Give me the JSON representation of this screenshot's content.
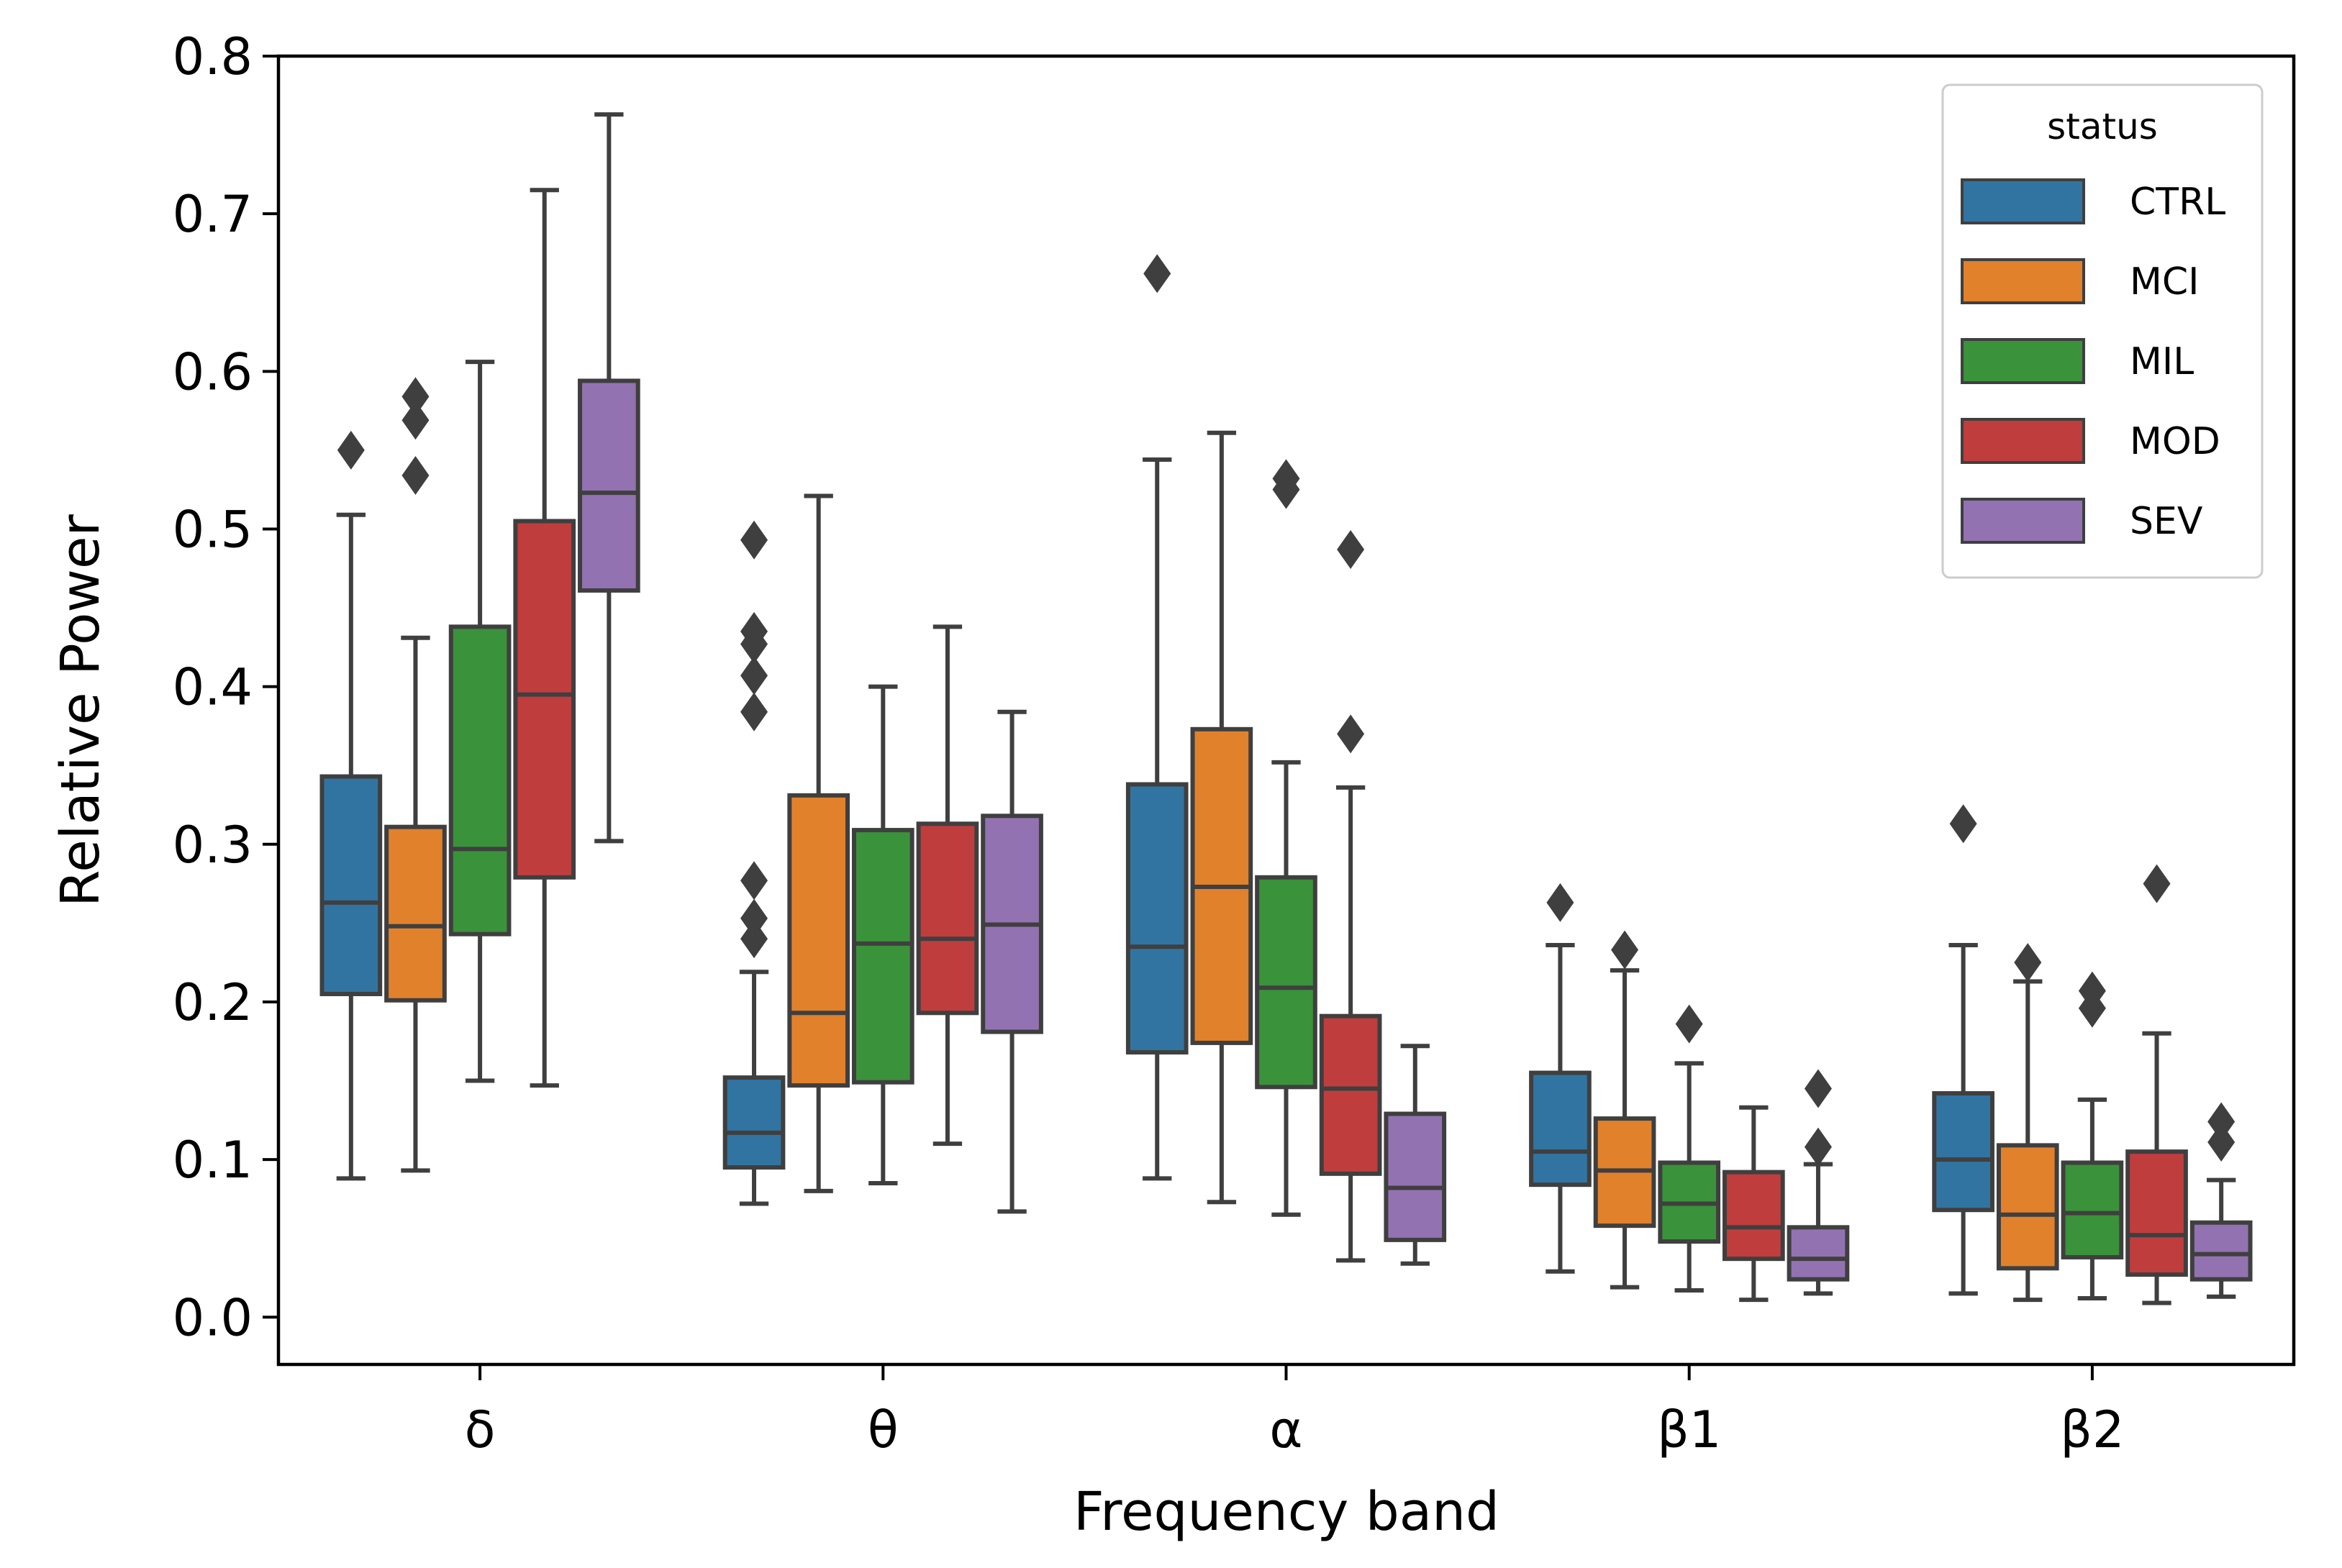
{
  "chart_data": {
    "type": "boxplot",
    "title": "",
    "xlabel": "Frequency band",
    "ylabel": "Relative Power",
    "ylim": [
      -0.03,
      0.8
    ],
    "yticks": [
      "0.0",
      "0.1",
      "0.2",
      "0.3",
      "0.4",
      "0.5",
      "0.6",
      "0.7",
      "0.8"
    ],
    "categories": [
      "δ",
      "θ",
      "α",
      "β1",
      "β2"
    ],
    "legend": {
      "title": "status",
      "position": "top-right"
    },
    "series": [
      {
        "name": "CTRL",
        "color": "#3274a1",
        "boxes": [
          {
            "whisker_low": 0.088,
            "q1": 0.205,
            "median": 0.263,
            "q3": 0.343,
            "whisker_high": 0.509,
            "outliers": [
              0.55
            ]
          },
          {
            "whisker_low": 0.072,
            "q1": 0.095,
            "median": 0.117,
            "q3": 0.152,
            "whisker_high": 0.219,
            "outliers": [
              0.24,
              0.253,
              0.277,
              0.384,
              0.407,
              0.427,
              0.435,
              0.493
            ]
          },
          {
            "whisker_low": 0.088,
            "q1": 0.168,
            "median": 0.235,
            "q3": 0.338,
            "whisker_high": 0.544,
            "outliers": [
              0.662
            ]
          },
          {
            "whisker_low": 0.029,
            "q1": 0.084,
            "median": 0.105,
            "q3": 0.155,
            "whisker_high": 0.236,
            "outliers": [
              0.263
            ]
          },
          {
            "whisker_low": 0.015,
            "q1": 0.068,
            "median": 0.1,
            "q3": 0.142,
            "whisker_high": 0.236,
            "outliers": [
              0.313
            ]
          }
        ]
      },
      {
        "name": "MCI",
        "color": "#e1812c",
        "boxes": [
          {
            "whisker_low": 0.093,
            "q1": 0.201,
            "median": 0.248,
            "q3": 0.311,
            "whisker_high": 0.431,
            "outliers": [
              0.534,
              0.569,
              0.584
            ]
          },
          {
            "whisker_low": 0.08,
            "q1": 0.147,
            "median": 0.193,
            "q3": 0.331,
            "whisker_high": 0.521,
            "outliers": []
          },
          {
            "whisker_low": 0.073,
            "q1": 0.174,
            "median": 0.273,
            "q3": 0.373,
            "whisker_high": 0.561,
            "outliers": []
          },
          {
            "whisker_low": 0.019,
            "q1": 0.058,
            "median": 0.093,
            "q3": 0.126,
            "whisker_high": 0.22,
            "outliers": [
              0.233
            ]
          },
          {
            "whisker_low": 0.011,
            "q1": 0.031,
            "median": 0.065,
            "q3": 0.109,
            "whisker_high": 0.213,
            "outliers": [
              0.225
            ]
          }
        ]
      },
      {
        "name": "MIL",
        "color": "#3a923a",
        "boxes": [
          {
            "whisker_low": 0.15,
            "q1": 0.243,
            "median": 0.297,
            "q3": 0.438,
            "whisker_high": 0.606,
            "outliers": []
          },
          {
            "whisker_low": 0.085,
            "q1": 0.149,
            "median": 0.237,
            "q3": 0.309,
            "whisker_high": 0.4,
            "outliers": []
          },
          {
            "whisker_low": 0.065,
            "q1": 0.146,
            "median": 0.209,
            "q3": 0.279,
            "whisker_high": 0.352,
            "outliers": [
              0.525,
              0.532
            ]
          },
          {
            "whisker_low": 0.017,
            "q1": 0.048,
            "median": 0.072,
            "q3": 0.098,
            "whisker_high": 0.161,
            "outliers": [
              0.186
            ]
          },
          {
            "whisker_low": 0.012,
            "q1": 0.038,
            "median": 0.066,
            "q3": 0.098,
            "whisker_high": 0.138,
            "outliers": [
              0.196,
              0.207
            ]
          }
        ]
      },
      {
        "name": "MOD",
        "color": "#c03d3e",
        "boxes": [
          {
            "whisker_low": 0.147,
            "q1": 0.279,
            "median": 0.395,
            "q3": 0.505,
            "whisker_high": 0.715,
            "outliers": []
          },
          {
            "whisker_low": 0.11,
            "q1": 0.193,
            "median": 0.24,
            "q3": 0.313,
            "whisker_high": 0.438,
            "outliers": []
          },
          {
            "whisker_low": 0.036,
            "q1": 0.091,
            "median": 0.145,
            "q3": 0.191,
            "whisker_high": 0.336,
            "outliers": [
              0.37,
              0.487
            ]
          },
          {
            "whisker_low": 0.011,
            "q1": 0.037,
            "median": 0.057,
            "q3": 0.092,
            "whisker_high": 0.133,
            "outliers": []
          },
          {
            "whisker_low": 0.009,
            "q1": 0.027,
            "median": 0.052,
            "q3": 0.105,
            "whisker_high": 0.18,
            "outliers": [
              0.275
            ]
          }
        ]
      },
      {
        "name": "SEV",
        "color": "#9372b2",
        "boxes": [
          {
            "whisker_low": 0.302,
            "q1": 0.461,
            "median": 0.523,
            "q3": 0.594,
            "whisker_high": 0.763,
            "outliers": []
          },
          {
            "whisker_low": 0.067,
            "q1": 0.181,
            "median": 0.249,
            "q3": 0.318,
            "whisker_high": 0.384,
            "outliers": []
          },
          {
            "whisker_low": 0.034,
            "q1": 0.049,
            "median": 0.082,
            "q3": 0.129,
            "whisker_high": 0.172,
            "outliers": []
          },
          {
            "whisker_low": 0.015,
            "q1": 0.024,
            "median": 0.037,
            "q3": 0.057,
            "whisker_high": 0.097,
            "outliers": [
              0.108,
              0.145
            ]
          },
          {
            "whisker_low": 0.013,
            "q1": 0.024,
            "median": 0.04,
            "q3": 0.06,
            "whisker_high": 0.087,
            "outliers": [
              0.111,
              0.124
            ]
          }
        ]
      }
    ]
  }
}
